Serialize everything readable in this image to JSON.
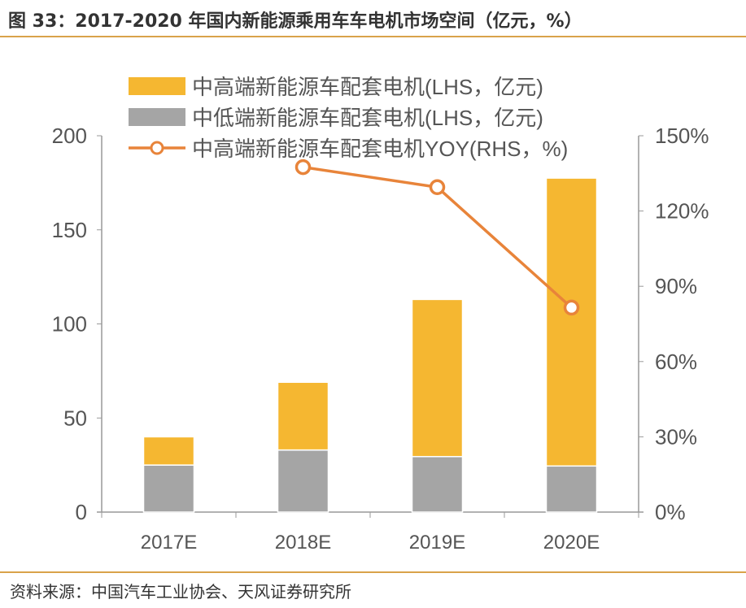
{
  "title": "图 33：2017-2020 年国内新能源乘用车车电机市场空间（亿元，%）",
  "source": "资料来源：中国汽车工业协会、天风证券研究所",
  "chart_data": {
    "type": "bar",
    "stacked": true,
    "categories": [
      "2017E",
      "2018E",
      "2019E",
      "2020E"
    ],
    "series": [
      {
        "name": "中低端新能源车配套电机(LHS，亿元)",
        "type": "bar",
        "axis": "left",
        "color": "#A5A5A5",
        "values": [
          25,
          33,
          29.5,
          24.5
        ]
      },
      {
        "name": "中高端新能源车配套电机(LHS，亿元)",
        "type": "bar",
        "axis": "left",
        "color": "#F5B731",
        "values": [
          15,
          36,
          83.5,
          153
        ]
      },
      {
        "name": "中高端新能源车配套电机YOY(RHS，%)",
        "type": "line",
        "axis": "right",
        "color": "#E8843A",
        "values": [
          null,
          137.5,
          129.5,
          81.5
        ]
      }
    ],
    "legend_order": [
      1,
      0,
      2
    ],
    "left_axis": {
      "range": [
        0,
        200
      ],
      "ticks": [
        "0",
        "50",
        "100",
        "150",
        "200"
      ]
    },
    "right_axis": {
      "range": [
        0,
        150
      ],
      "ticks": [
        "0%",
        "30%",
        "60%",
        "90%",
        "120%",
        "150%"
      ]
    },
    "grid": false,
    "legend_position": "top"
  }
}
